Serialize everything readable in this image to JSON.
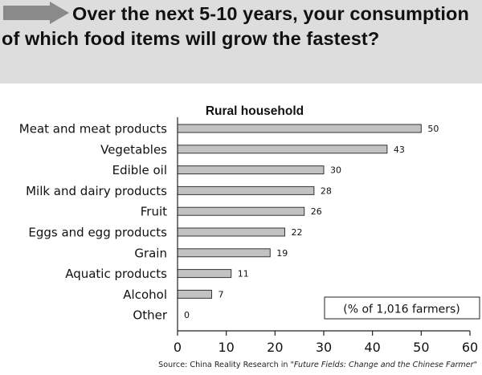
{
  "header": {
    "title": "Over the next 5-10 years, your consumption of which food items will grow the fastest?"
  },
  "chart_data": {
    "type": "bar",
    "orientation": "horizontal",
    "title": "Rural household",
    "categories": [
      "Meat and meat products",
      "Vegetables",
      "Edible oil",
      "Milk and dairy products",
      "Fruit",
      "Eggs and egg products",
      "Grain",
      "Aquatic products",
      "Alcohol",
      "Other"
    ],
    "values": [
      50,
      43,
      30,
      28,
      26,
      22,
      19,
      11,
      7,
      0
    ],
    "xlim": [
      0,
      60
    ],
    "xticks": [
      "0",
      "10",
      "20",
      "30",
      "40",
      "50",
      "60"
    ],
    "annotation": "(% of 1,016 farmers)",
    "grid": false,
    "bar_color": "#c2c2c2",
    "bar_edge_color": "#333333"
  },
  "source": {
    "prefix": "Source: China Reality Research in ",
    "publication": "\"Future Fields: Change and the Chinese Farmer\""
  }
}
